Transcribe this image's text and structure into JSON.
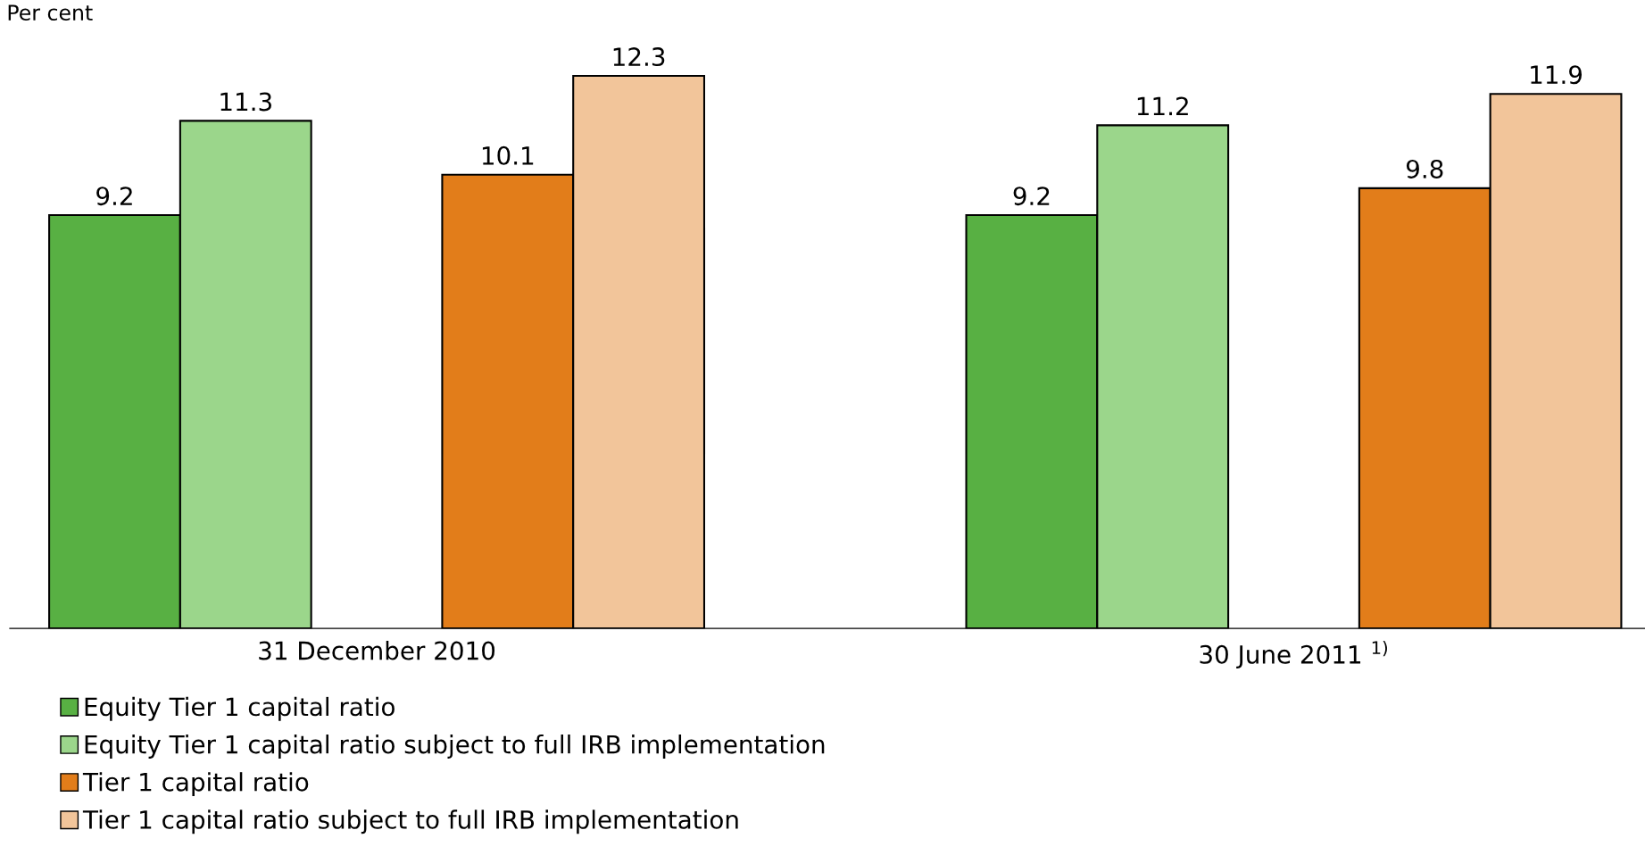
{
  "chart_data": {
    "type": "bar",
    "ylabel": "Per cent",
    "categories": [
      "31 December 2010",
      "30 June 2011 $^{1)}$"
    ],
    "series": [
      {
        "name": "Equity Tier 1 capital ratio",
        "color": "#58b043",
        "values": [
          9.2,
          9.2
        ]
      },
      {
        "name": "Equity Tier 1 capital ratio subject to full IRB implementation",
        "color": "#9bd68b",
        "values": [
          11.3,
          11.2
        ]
      },
      {
        "name": "Tier 1 capital ratio",
        "color": "#e27d1a",
        "values": [
          10.1,
          9.8
        ]
      },
      {
        "name": "Tier 1 capital ratio subject to full IRB implementation",
        "color": "#f2c59a",
        "values": [
          12.3,
          11.9
        ]
      }
    ],
    "data_labels": true,
    "legend": "bottom"
  }
}
